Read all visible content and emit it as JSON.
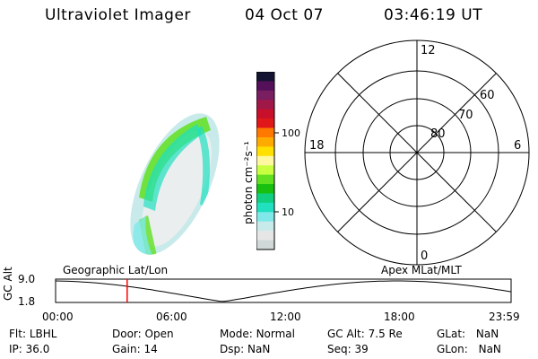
{
  "header": {
    "instrument": "Ultraviolet Imager",
    "date": "04 Oct 07",
    "time": "03:46:19 UT"
  },
  "colorbar": {
    "unit_label": "photon cm⁻²s⁻¹",
    "ticks": [
      "100",
      "10"
    ],
    "colors": [
      "#141432",
      "#55105a",
      "#7a1e62",
      "#a01848",
      "#c8102a",
      "#e0181a",
      "#ff7800",
      "#ffaa00",
      "#ffe000",
      "#fff8a0",
      "#c8ff40",
      "#60e020",
      "#18c010",
      "#10d080",
      "#20e0c0",
      "#80e8e8",
      "#c8eaea",
      "#e6e6e6",
      "#d0d8d8"
    ]
  },
  "polar_grid": {
    "mlt_labels": {
      "top": "12",
      "left": "18",
      "right": "6",
      "bottom": "0"
    },
    "lat_labels": [
      "60",
      "70",
      "80"
    ]
  },
  "timeline": {
    "left_label": "Geographic Lat/Lon",
    "right_label": "Apex MLat/MLT",
    "y_axis_title": "GC Alt",
    "y_ticks": [
      "9.0",
      "1.8"
    ],
    "x_ticks": [
      "00:00",
      "06:00",
      "12:00",
      "18:00",
      "23:59"
    ],
    "current_time_hours": 3.77,
    "marker_color": "#ff0000"
  },
  "status": {
    "flt": {
      "label": "Flt:",
      "value": "LBHL"
    },
    "ip": {
      "label": "IP:",
      "value": "36.0"
    },
    "door": {
      "label": "Door:",
      "value": "Open"
    },
    "gain": {
      "label": "Gain:",
      "value": "14"
    },
    "mode": {
      "label": "Mode:",
      "value": "Normal"
    },
    "dsp": {
      "label": "Dsp:",
      "value": "NaN"
    },
    "gc_alt": {
      "label": "GC Alt:",
      "value": "7.5 Re"
    },
    "seq": {
      "label": "Seq:",
      "value": "39"
    },
    "glat": {
      "label": "GLat:",
      "value": "NaN"
    },
    "glon": {
      "label": "GLon:",
      "value": "NaN"
    }
  }
}
